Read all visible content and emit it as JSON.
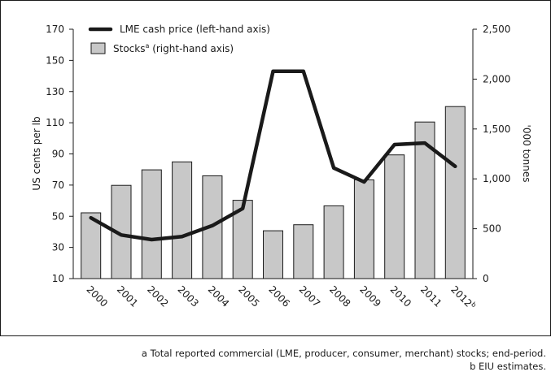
{
  "chart_data": {
    "type": "bar",
    "categories": [
      "2000",
      "2001",
      "2002",
      "2003",
      "2004",
      "2005",
      "2006",
      "2007",
      "2008",
      "2009",
      "2010",
      "2011",
      "2012"
    ],
    "category_superscripts": [
      "",
      "",
      "",
      "",
      "",
      "",
      "",
      "",
      "",
      "",
      "",
      "",
      "b"
    ],
    "series": [
      {
        "name": "Stocks",
        "name_superscript": "a",
        "name_suffix": " (right-hand axis)",
        "type": "bar",
        "axis": "right",
        "color": "#c8c8c8",
        "values": [
          660,
          935,
          1090,
          1170,
          1030,
          785,
          480,
          540,
          730,
          990,
          1240,
          1570,
          1725
        ]
      },
      {
        "name": "LME cash price (left-hand axis)",
        "type": "line",
        "axis": "left",
        "color": "#1a1a1a",
        "values": [
          49,
          38,
          35,
          37,
          44,
          55,
          143,
          143,
          81,
          72,
          96,
          97,
          82
        ]
      }
    ],
    "ylabel": "US cents per lb",
    "ylim": [
      10,
      170
    ],
    "yticks": [
      10,
      30,
      50,
      70,
      90,
      110,
      130,
      150,
      170
    ],
    "y2label": "'000 tonnes",
    "y2lim": [
      0,
      2500
    ],
    "y2ticks": [
      0,
      500,
      1000,
      1500,
      2000,
      2500
    ],
    "y2ticklabels": [
      "0",
      "500",
      "1,000",
      "1,500",
      "2,000",
      "2,500"
    ],
    "legend_position": "top-left",
    "grid": false
  },
  "footnotes": {
    "a": "a Total reported commercial (LME, producer, consumer, merchant) stocks; end-period.",
    "b": "b EIU estimates."
  }
}
